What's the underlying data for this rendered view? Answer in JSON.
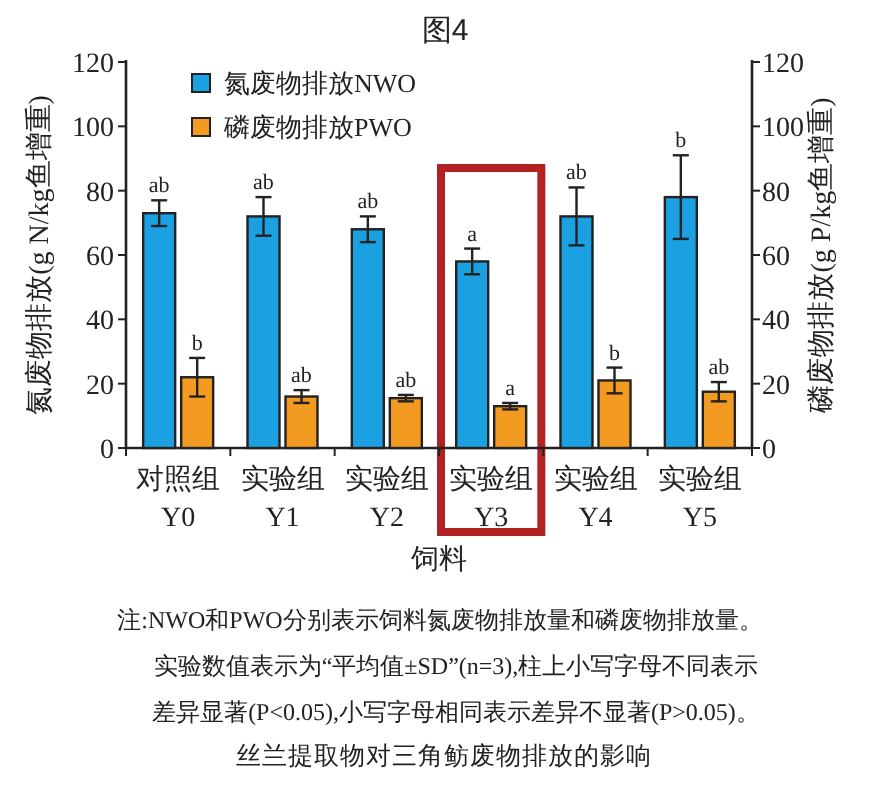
{
  "chart_data": {
    "type": "bar",
    "title": "图4",
    "xlabel": "饲料",
    "ylabel": "氮废物排放(g N/kg鱼增重)",
    "y2label": "磷废物排放(g P/kg鱼增重)",
    "categories": [
      "对照组\nY0",
      "实验组\nY1",
      "实验组\nY2",
      "实验组\nY3",
      "实验组\nY4",
      "实验组\nY5"
    ],
    "series": [
      {
        "name": "氮废物排放NWO",
        "color": "#1ba1e2",
        "values": [
          73,
          72,
          68,
          58,
          72,
          78
        ],
        "errors": [
          4,
          6,
          4,
          4,
          9,
          13
        ],
        "value_labels": [
          "ab",
          "ab",
          "ab",
          "a",
          "ab",
          "b"
        ]
      },
      {
        "name": "磷废物排放PWO",
        "color": "#f39a21",
        "values": [
          22,
          16,
          15.5,
          13,
          21,
          17.5
        ],
        "errors": [
          6,
          2,
          1,
          1,
          4,
          3
        ],
        "value_labels": [
          "b",
          "ab",
          "ab",
          "a",
          "b",
          "ab"
        ]
      }
    ],
    "ylim": [
      0,
      120
    ],
    "yticks": [
      0,
      20,
      40,
      60,
      80,
      100,
      120
    ],
    "y2lim": [
      0,
      120
    ],
    "y2ticks": [
      0,
      20,
      40,
      60,
      80,
      100,
      120
    ],
    "legend": "top left",
    "grid": false,
    "annotations": [
      "注:NWO和PWO分别表示饲料氮废物排放量和磷废物排放量。",
      "实验数值表示为“平均值±SD”(n=3),柱上小写字母不同表示",
      "差异显著(P<0.05),小写字母相同表示差异不显著(P>0.05)。",
      "丝兰提取物对三角鲂废物排放的影响"
    ]
  }
}
